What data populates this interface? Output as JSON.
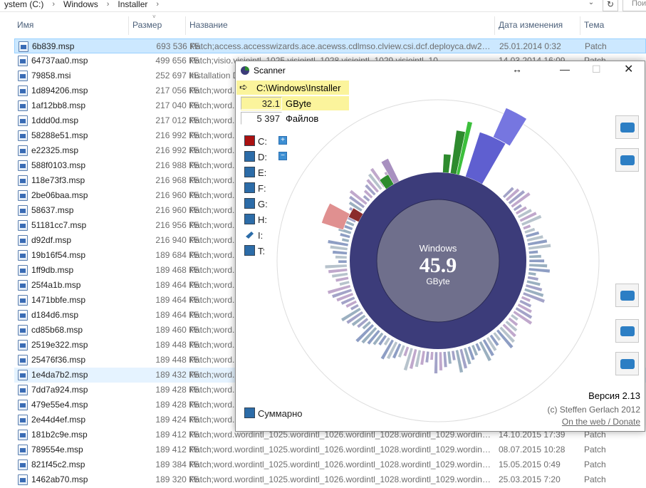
{
  "explorer": {
    "breadcrumb": [
      "ystem (C:)",
      "Windows",
      "Installer"
    ],
    "search_placeholder": "Пои",
    "columns": {
      "name": "Имя",
      "size": "Размер",
      "title": "Название",
      "date": "Дата изменения",
      "type": "Тема"
    },
    "rows": [
      {
        "name": "6b839.msp",
        "size": "693 536 КБ",
        "title": "Patch;access.accesswizards.ace.acewss.cdlmso.clview.csi.dcf.deployca.dw20.e...",
        "date": "25.01.2014 0:32",
        "type": "Patch"
      },
      {
        "name": "64737aa0.msp",
        "size": "499 656 КБ",
        "title": "Patch;visio.visiointl_1025.visiointl_1028.visiointl_1029.visiointl_10...",
        "date": "14.03.2014 16:09",
        "type": "Patch"
      },
      {
        "name": "79858.msi",
        "size": "252 697 КБ",
        "title": "Installation D",
        "date": "",
        "type": ""
      },
      {
        "name": "1d894206.msp",
        "size": "217 056 КБ",
        "title": "Patch;word.",
        "date": "",
        "type": ""
      },
      {
        "name": "1af12bb8.msp",
        "size": "217 040 КБ",
        "title": "Patch;word.",
        "date": "",
        "type": ""
      },
      {
        "name": "1ddd0d.msp",
        "size": "217 012 КБ",
        "title": "Patch;word.",
        "date": "",
        "type": ""
      },
      {
        "name": "58288e51.msp",
        "size": "216 992 КБ",
        "title": "Patch;word.",
        "date": "",
        "type": ""
      },
      {
        "name": "e22325.msp",
        "size": "216 992 КБ",
        "title": "Patch;word.",
        "date": "",
        "type": ""
      },
      {
        "name": "588f0103.msp",
        "size": "216 988 КБ",
        "title": "Patch;word.",
        "date": "",
        "type": ""
      },
      {
        "name": "118e73f3.msp",
        "size": "216 968 КБ",
        "title": "Patch;word.",
        "date": "",
        "type": ""
      },
      {
        "name": "2be06baa.msp",
        "size": "216 960 КБ",
        "title": "Patch;word.",
        "date": "",
        "type": ""
      },
      {
        "name": "58637.msp",
        "size": "216 960 КБ",
        "title": "Patch;word.",
        "date": "",
        "type": ""
      },
      {
        "name": "51181cc7.msp",
        "size": "216 956 КБ",
        "title": "Patch;word.",
        "date": "",
        "type": ""
      },
      {
        "name": "d92df.msp",
        "size": "216 940 КБ",
        "title": "Patch;word.",
        "date": "",
        "type": ""
      },
      {
        "name": "19b16f54.msp",
        "size": "189 684 КБ",
        "title": "Patch;word.",
        "date": "",
        "type": ""
      },
      {
        "name": "1ff9db.msp",
        "size": "189 468 КБ",
        "title": "Patch;word.",
        "date": "",
        "type": ""
      },
      {
        "name": "25f4a1b.msp",
        "size": "189 464 КБ",
        "title": "Patch;word.",
        "date": "",
        "type": ""
      },
      {
        "name": "1471bbfe.msp",
        "size": "189 464 КБ",
        "title": "Patch;word.",
        "date": "",
        "type": ""
      },
      {
        "name": "d184d6.msp",
        "size": "189 464 КБ",
        "title": "Patch;word.",
        "date": "",
        "type": ""
      },
      {
        "name": "cd85b68.msp",
        "size": "189 460 КБ",
        "title": "Patch;word.",
        "date": "",
        "type": ""
      },
      {
        "name": "2519e322.msp",
        "size": "189 448 КБ",
        "title": "Patch;word.",
        "date": "",
        "type": ""
      },
      {
        "name": "25476f36.msp",
        "size": "189 448 КБ",
        "title": "Patch;word.",
        "date": "",
        "type": ""
      },
      {
        "name": "1e4da7b2.msp",
        "size": "189 432 КБ",
        "title": "Patch;word.",
        "date": "",
        "type": ""
      },
      {
        "name": "7dd7a924.msp",
        "size": "189 428 КБ",
        "title": "Patch;word.",
        "date": "",
        "type": ""
      },
      {
        "name": "479e55e4.msp",
        "size": "189 428 КБ",
        "title": "Patch;word.",
        "date": "",
        "type": ""
      },
      {
        "name": "2e44d4ef.msp",
        "size": "189 424 КБ",
        "title": "Patch;word.",
        "date": "",
        "type": ""
      },
      {
        "name": "181b2c9e.msp",
        "size": "189 412 КБ",
        "title": "Patch;word.wordintl_1025.wordintl_1026.wordintl_1028.wordintl_1029.wordintl...",
        "date": "14.10.2015 17:39",
        "type": "Patch"
      },
      {
        "name": "789554e.msp",
        "size": "189 412 КБ",
        "title": "Patch;word.wordintl_1025.wordintl_1026.wordintl_1028.wordintl_1029.wordintl...",
        "date": "08.07.2015 10:28",
        "type": "Patch"
      },
      {
        "name": "821f45c2.msp",
        "size": "189 384 КБ",
        "title": "Patch;word.wordintl_1025.wordintl_1026.wordintl_1028.wordintl_1029.wordintl...",
        "date": "15.05.2015 0:49",
        "type": "Patch"
      },
      {
        "name": "1462ab70.msp",
        "size": "189 320 КБ",
        "title": "Patch;word.wordintl_1025.wordintl_1026.wordintl_1028.wordintl_1029.wordintl...",
        "date": "25.03.2015 7:20",
        "type": "Patch"
      }
    ]
  },
  "scanner": {
    "title": "Scanner",
    "path": "C:\\Windows\\Installer",
    "size_value": "32.1",
    "size_unit": "GByte",
    "files_value": "5 397",
    "files_label": "Файлов",
    "drives": [
      "C:",
      "D:",
      "E:",
      "F:",
      "G:",
      "H:",
      "I:",
      "T:"
    ],
    "center_name": "Windows",
    "center_value": "45.9",
    "center_unit": "GByte",
    "summary_label": "Суммарно",
    "version": "Версия 2.13",
    "copyright": "(c) Steffen Gerlach 2012",
    "web_link": "On the web / Donate",
    "colors": {
      "ring": "#3c3c7a",
      "center": "#6f6f8c",
      "highlight": "#fbf49c",
      "accent": "#2c7ec4"
    }
  }
}
